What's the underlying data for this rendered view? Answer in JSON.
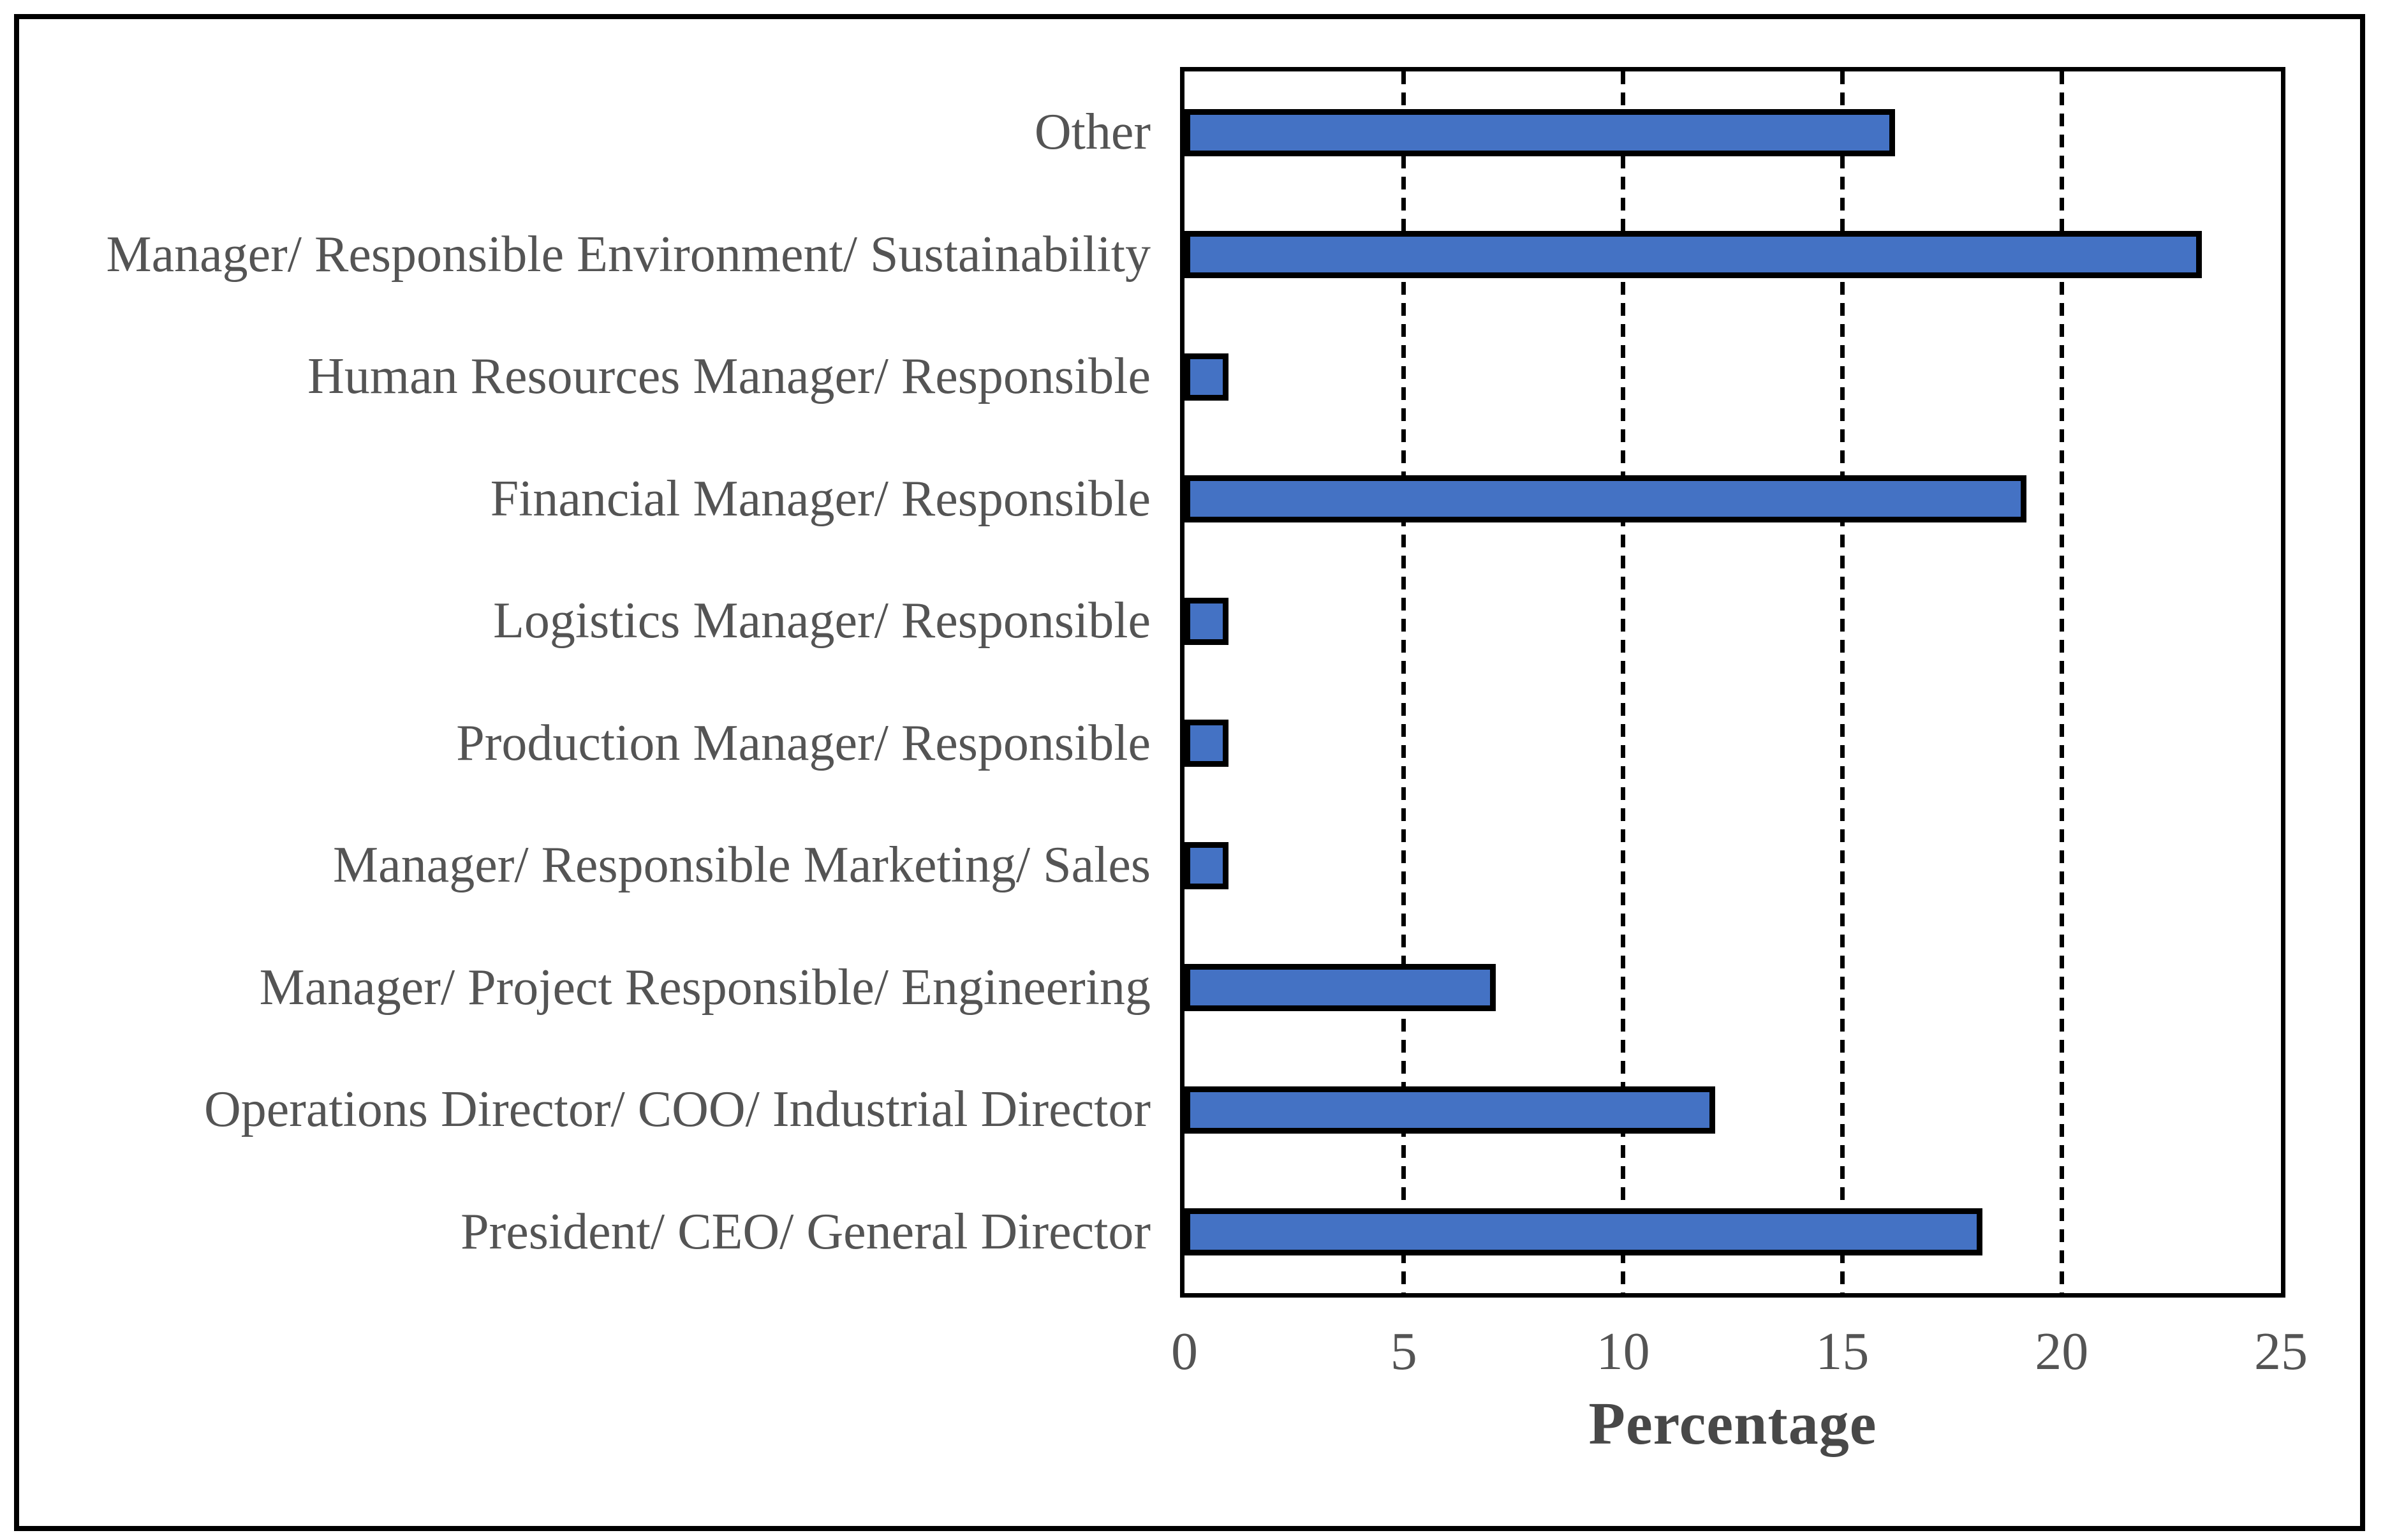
{
  "figure": {
    "background": "#ffffff",
    "border_color": "#000000"
  },
  "chart_data": {
    "type": "bar",
    "orientation": "horizontal",
    "title": "",
    "xlabel": "Percentage",
    "xlim": [
      0,
      25
    ],
    "xticks": [
      0,
      5,
      10,
      15,
      20,
      25
    ],
    "grid": "vertical-dashed",
    "legend": "none",
    "bar_fill": "#4472C4",
    "bar_outline": "#000000",
    "text_color": "#545454",
    "categories": [
      "Other",
      "Manager/ Responsible Environment/ Sustainability",
      "Human Resources Manager/ Responsible",
      "Financial Manager/ Responsible",
      "Logistics Manager/ Responsible",
      "Production Manager/ Responsible",
      "Manager/ Responsible Marketing/ Sales",
      "Manager/ Project Responsible/ Engineering",
      "Operations Director/ COO/ Industrial Director",
      "President/ CEO/ General Director"
    ],
    "values": [
      16.2,
      23.2,
      1,
      19.2,
      1,
      1,
      1,
      7.1,
      12.1,
      18.2
    ]
  }
}
